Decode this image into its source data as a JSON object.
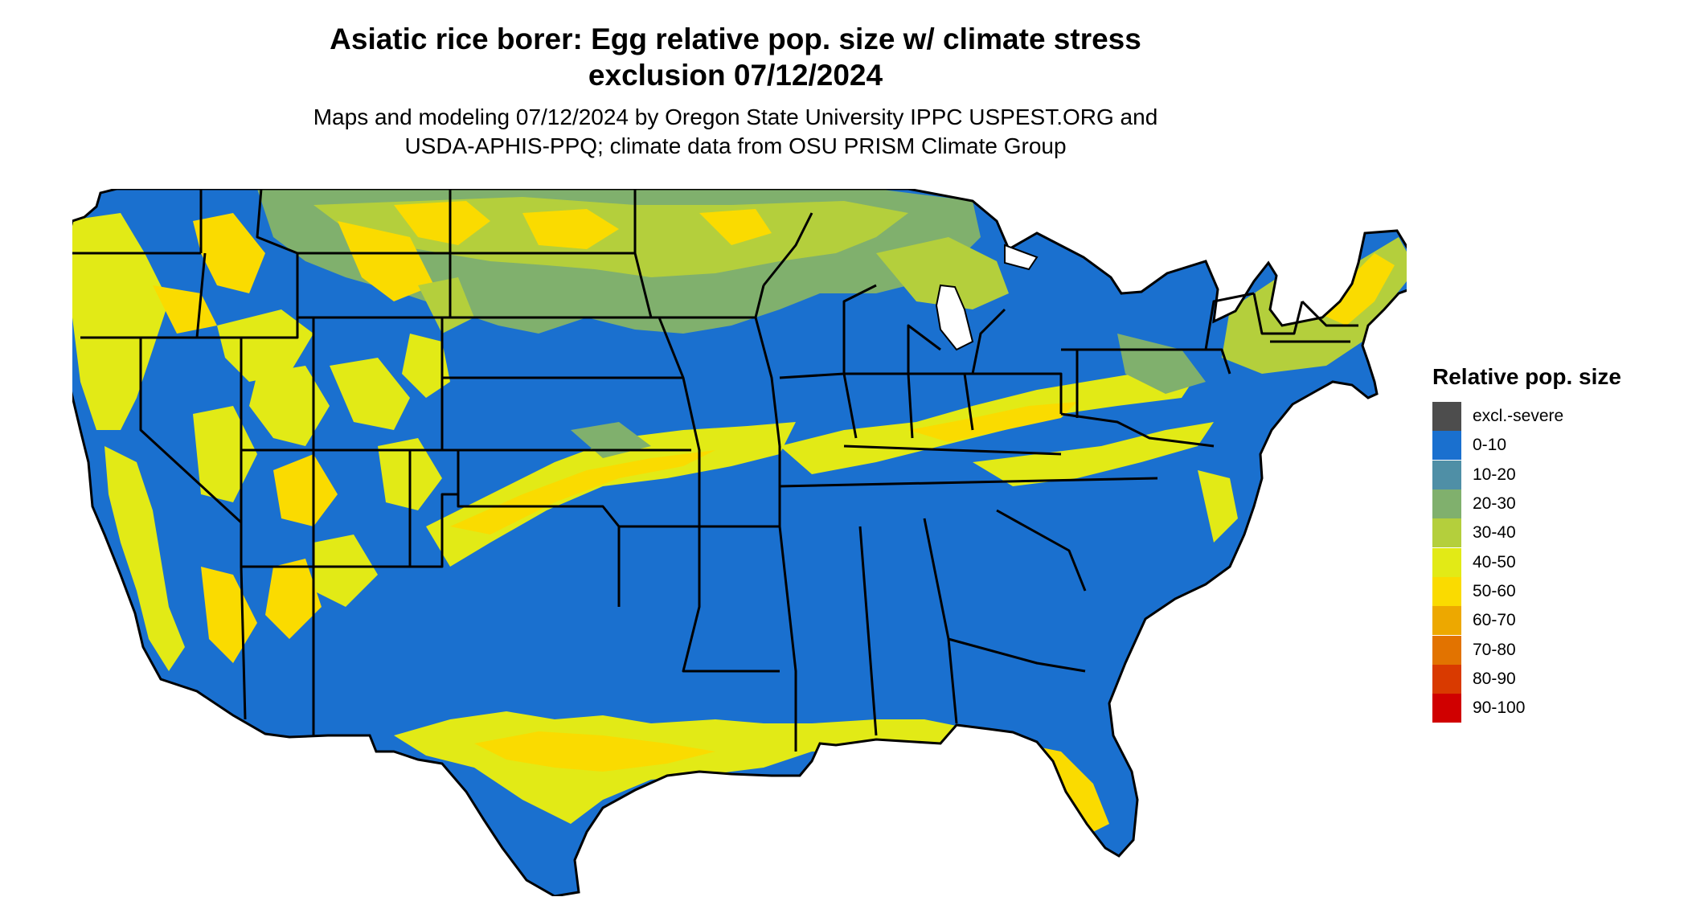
{
  "header": {
    "title_line1": "Asiatic rice borer: Egg relative pop. size w/ climate stress",
    "title_line2": "exclusion 07/12/2024",
    "subtitle_line1": "Maps and modeling 07/12/2024 by Oregon State University IPPC USPEST.ORG and",
    "subtitle_line2": "USDA-APHIS-PPQ; climate data from OSU PRISM Climate Group"
  },
  "legend": {
    "title": "Relative pop. size",
    "items": [
      {
        "label": "excl.-severe",
        "color": "#4d4d4d"
      },
      {
        "label": "0-10",
        "color": "#1a70cf"
      },
      {
        "label": "10-20",
        "color": "#4f8fa6"
      },
      {
        "label": "20-30",
        "color": "#80b06d"
      },
      {
        "label": "30-40",
        "color": "#b4cf3c"
      },
      {
        "label": "40-50",
        "color": "#e2ea16"
      },
      {
        "label": "50-60",
        "color": "#fadb00"
      },
      {
        "label": "60-70",
        "color": "#eda800"
      },
      {
        "label": "70-80",
        "color": "#e27300"
      },
      {
        "label": "80-90",
        "color": "#d93a00"
      },
      {
        "label": "90-100",
        "color": "#d00000"
      }
    ]
  }
}
